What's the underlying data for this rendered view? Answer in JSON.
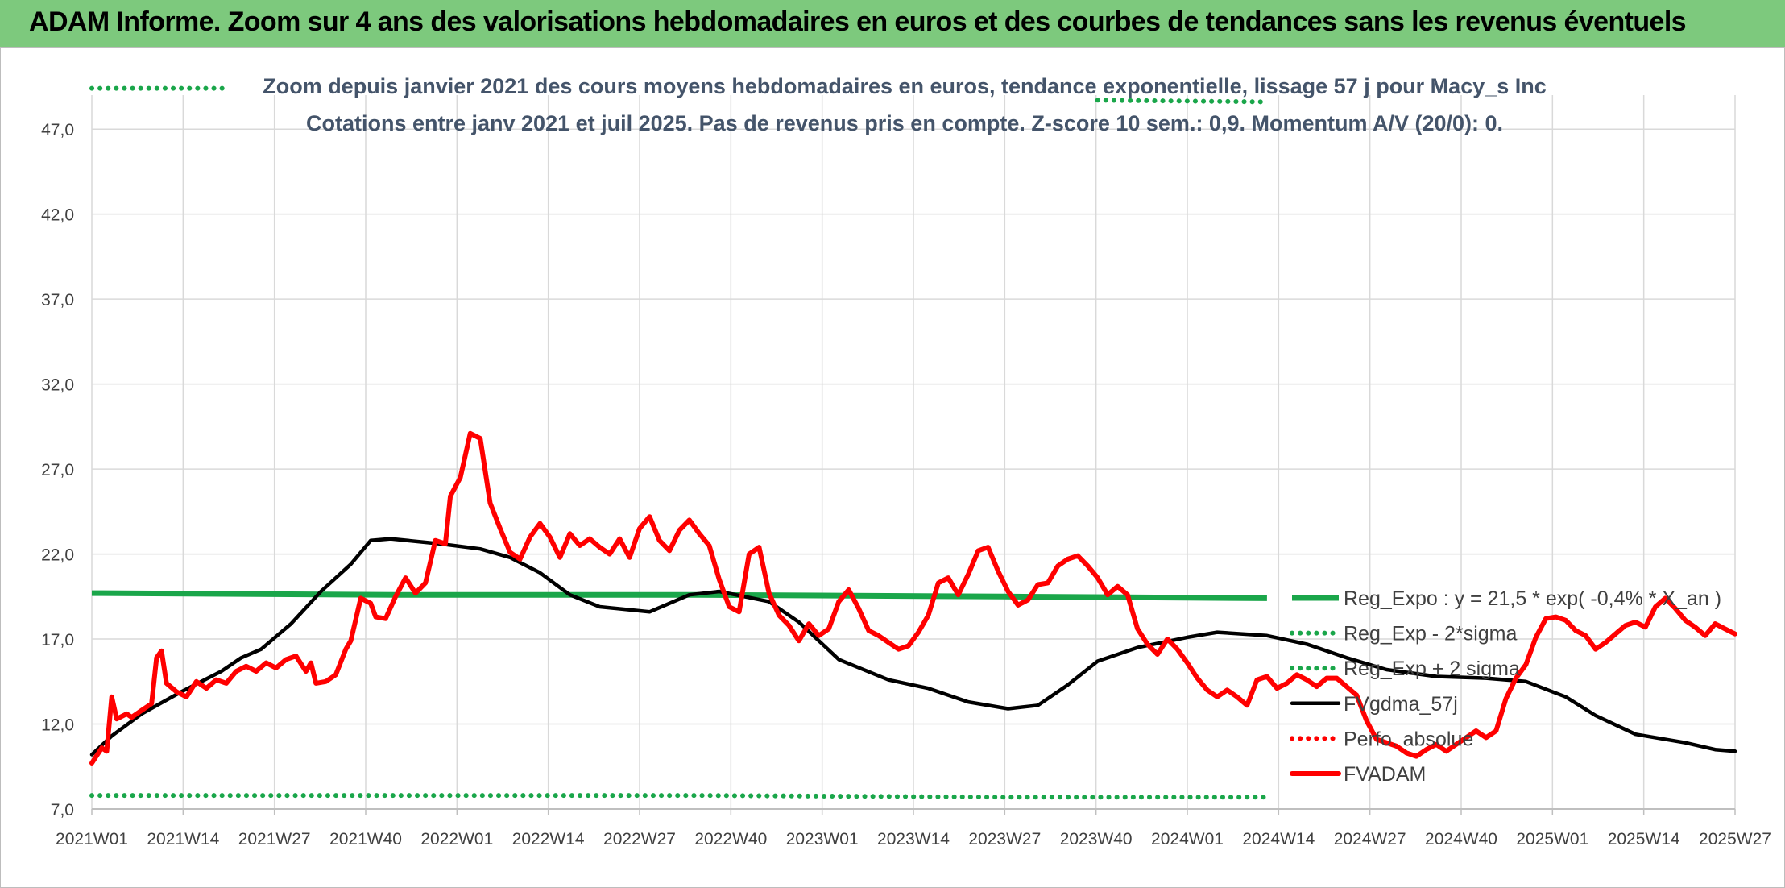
{
  "header": {
    "title": "ADAM Informe. Zoom sur 4 ans des valorisations hebdomadaires en euros et des courbes de tendances sans les revenus éventuels"
  },
  "chart_data": {
    "type": "line",
    "title": "Zoom depuis janvier 2021 des cours moyens hebdomadaires en euros, tendance exponentielle, lissage 57 j pour Macy_s Inc",
    "subtitle": "Cotations entre janv 2021 et juil 2025. Pas de revenus pris en compte. Z-score 10 sem.: 0,9. Momentum A/V (20/0): 0.",
    "xlabel": "",
    "ylabel": "",
    "ylim": [
      7.0,
      49.0
    ],
    "yticks": [
      "7,0",
      "12,0",
      "17,0",
      "22,0",
      "27,0",
      "32,0",
      "37,0",
      "42,0",
      "47,0"
    ],
    "x_tick_labels": [
      "2021W01",
      "2021W14",
      "2021W27",
      "2021W40",
      "2022W01",
      "2022W14",
      "2022W27",
      "2022W40",
      "2023W01",
      "2023W14",
      "2023W27",
      "2023W40",
      "2024W01",
      "2024W14",
      "2024W27",
      "2024W40",
      "2025W01",
      "2025W14",
      "2025W27"
    ],
    "grid": true,
    "legend_position": "right",
    "series": [
      {
        "name": "Reg_Expo : y = 21,5 * exp( -0,4% * X_an )",
        "color": "#1aa64a",
        "style": "solid",
        "points": [
          [
            0,
            19.7
          ],
          [
            61,
            19.6
          ],
          [
            122,
            19.6
          ],
          [
            183,
            19.5
          ],
          [
            236,
            19.4
          ]
        ]
      },
      {
        "name": "Reg_Exp - 2*sigma",
        "color": "#1aa64a",
        "style": "dotted",
        "points": [
          [
            0,
            7.8
          ],
          [
            61,
            7.8
          ],
          [
            122,
            7.8
          ],
          [
            183,
            7.7
          ],
          [
            236,
            7.7
          ]
        ]
      },
      {
        "name": "Reg_Exp + 2 sigma",
        "color": "#1aa64a",
        "style": "dotted",
        "points": [
          [
            0,
            49.4
          ],
          [
            27,
            49.4
          ]
        ],
        "points2": [
          [
            202,
            48.7
          ],
          [
            236,
            48.6
          ]
        ]
      },
      {
        "name": "FVgdma_57j",
        "color": "#000000",
        "style": "solid",
        "points": [
          [
            0,
            10.2
          ],
          [
            4,
            11.3
          ],
          [
            10,
            12.6
          ],
          [
            18,
            13.9
          ],
          [
            26,
            15.1
          ],
          [
            30,
            15.9
          ],
          [
            34,
            16.4
          ],
          [
            40,
            17.9
          ],
          [
            46,
            19.8
          ],
          [
            52,
            21.4
          ],
          [
            56,
            22.8
          ],
          [
            60,
            22.9
          ],
          [
            70,
            22.6
          ],
          [
            78,
            22.3
          ],
          [
            84,
            21.8
          ],
          [
            90,
            20.9
          ],
          [
            96,
            19.6
          ],
          [
            102,
            18.9
          ],
          [
            112,
            18.6
          ],
          [
            120,
            19.6
          ],
          [
            126,
            19.8
          ],
          [
            136,
            19.2
          ],
          [
            142,
            18.0
          ],
          [
            150,
            15.8
          ],
          [
            160,
            14.6
          ],
          [
            168,
            14.1
          ],
          [
            176,
            13.3
          ],
          [
            184,
            12.9
          ],
          [
            190,
            13.1
          ],
          [
            196,
            14.3
          ],
          [
            202,
            15.7
          ],
          [
            210,
            16.5
          ],
          [
            220,
            17.1
          ],
          [
            226,
            17.4
          ],
          [
            236,
            17.2
          ],
          [
            244,
            16.7
          ],
          [
            252,
            15.9
          ],
          [
            260,
            15.2
          ],
          [
            270,
            14.8
          ],
          [
            280,
            14.7
          ],
          [
            288,
            14.5
          ],
          [
            296,
            13.6
          ],
          [
            302,
            12.5
          ],
          [
            310,
            11.4
          ],
          [
            320,
            10.9
          ],
          [
            326,
            10.5
          ],
          [
            330,
            10.4
          ]
        ]
      },
      {
        "name": "Perfo. absolue",
        "color": "#ff0000",
        "style": "dotted",
        "points": []
      },
      {
        "name": "FVADAM",
        "color": "#ff0000",
        "style": "solid",
        "points": [
          [
            0,
            9.7
          ],
          [
            2,
            10.6
          ],
          [
            3,
            10.4
          ],
          [
            4,
            13.6
          ],
          [
            5,
            12.3
          ],
          [
            7,
            12.6
          ],
          [
            8,
            12.4
          ],
          [
            10,
            12.8
          ],
          [
            12,
            13.2
          ],
          [
            13,
            15.9
          ],
          [
            14,
            16.3
          ],
          [
            15,
            14.4
          ],
          [
            17,
            13.9
          ],
          [
            19,
            13.6
          ],
          [
            21,
            14.5
          ],
          [
            23,
            14.1
          ],
          [
            25,
            14.6
          ],
          [
            27,
            14.4
          ],
          [
            29,
            15.1
          ],
          [
            31,
            15.4
          ],
          [
            33,
            15.1
          ],
          [
            35,
            15.6
          ],
          [
            37,
            15.3
          ],
          [
            39,
            15.8
          ],
          [
            41,
            16.0
          ],
          [
            43,
            15.1
          ],
          [
            44,
            15.6
          ],
          [
            45,
            14.4
          ],
          [
            47,
            14.5
          ],
          [
            49,
            14.9
          ],
          [
            51,
            16.4
          ],
          [
            52,
            16.9
          ],
          [
            54,
            19.4
          ],
          [
            56,
            19.1
          ],
          [
            57,
            18.3
          ],
          [
            59,
            18.2
          ],
          [
            61,
            19.5
          ],
          [
            63,
            20.6
          ],
          [
            65,
            19.7
          ],
          [
            67,
            20.3
          ],
          [
            69,
            22.8
          ],
          [
            71,
            22.6
          ],
          [
            72,
            25.4
          ],
          [
            74,
            26.5
          ],
          [
            76,
            29.1
          ],
          [
            78,
            28.8
          ],
          [
            80,
            25.0
          ],
          [
            82,
            23.5
          ],
          [
            84,
            22.1
          ],
          [
            86,
            21.7
          ],
          [
            88,
            23.0
          ],
          [
            90,
            23.8
          ],
          [
            92,
            23.0
          ],
          [
            94,
            21.8
          ],
          [
            96,
            23.2
          ],
          [
            98,
            22.5
          ],
          [
            100,
            22.9
          ],
          [
            102,
            22.4
          ],
          [
            104,
            22.0
          ],
          [
            106,
            22.9
          ],
          [
            108,
            21.8
          ],
          [
            110,
            23.5
          ],
          [
            112,
            24.2
          ],
          [
            114,
            22.8
          ],
          [
            116,
            22.2
          ],
          [
            118,
            23.4
          ],
          [
            120,
            24.0
          ],
          [
            122,
            23.2
          ],
          [
            124,
            22.5
          ],
          [
            126,
            20.5
          ],
          [
            128,
            18.9
          ],
          [
            130,
            18.6
          ],
          [
            132,
            22.0
          ],
          [
            134,
            22.4
          ],
          [
            136,
            19.7
          ],
          [
            138,
            18.4
          ],
          [
            140,
            17.8
          ],
          [
            142,
            16.9
          ],
          [
            144,
            17.9
          ],
          [
            146,
            17.2
          ],
          [
            148,
            17.6
          ],
          [
            150,
            19.2
          ],
          [
            152,
            19.9
          ],
          [
            154,
            18.8
          ],
          [
            156,
            17.5
          ],
          [
            158,
            17.2
          ],
          [
            160,
            16.8
          ],
          [
            162,
            16.4
          ],
          [
            164,
            16.6
          ],
          [
            166,
            17.4
          ],
          [
            168,
            18.4
          ],
          [
            170,
            20.3
          ],
          [
            172,
            20.6
          ],
          [
            174,
            19.6
          ],
          [
            176,
            20.8
          ],
          [
            178,
            22.2
          ],
          [
            180,
            22.4
          ],
          [
            182,
            21.0
          ],
          [
            184,
            19.8
          ],
          [
            186,
            19.0
          ],
          [
            188,
            19.3
          ],
          [
            190,
            20.2
          ],
          [
            192,
            20.3
          ],
          [
            194,
            21.3
          ],
          [
            196,
            21.7
          ],
          [
            198,
            21.9
          ],
          [
            200,
            21.3
          ],
          [
            202,
            20.6
          ],
          [
            204,
            19.6
          ],
          [
            206,
            20.1
          ],
          [
            208,
            19.6
          ],
          [
            210,
            17.6
          ],
          [
            212,
            16.7
          ],
          [
            214,
            16.1
          ],
          [
            216,
            17.0
          ],
          [
            218,
            16.4
          ],
          [
            220,
            15.6
          ],
          [
            222,
            14.7
          ],
          [
            224,
            14.0
          ],
          [
            226,
            13.6
          ],
          [
            228,
            14.0
          ],
          [
            230,
            13.6
          ],
          [
            232,
            13.1
          ],
          [
            234,
            14.6
          ],
          [
            236,
            14.8
          ],
          [
            238,
            14.1
          ],
          [
            240,
            14.4
          ],
          [
            242,
            14.9
          ],
          [
            244,
            14.6
          ],
          [
            246,
            14.2
          ],
          [
            248,
            14.7
          ],
          [
            250,
            14.7
          ],
          [
            252,
            14.2
          ],
          [
            254,
            13.7
          ],
          [
            256,
            12.2
          ],
          [
            258,
            11.1
          ],
          [
            260,
            10.9
          ],
          [
            262,
            10.7
          ],
          [
            264,
            10.3
          ],
          [
            266,
            10.1
          ],
          [
            268,
            10.5
          ],
          [
            270,
            10.8
          ],
          [
            272,
            10.4
          ],
          [
            274,
            10.8
          ],
          [
            276,
            11.2
          ],
          [
            278,
            11.6
          ],
          [
            280,
            11.2
          ],
          [
            282,
            11.6
          ],
          [
            284,
            13.5
          ],
          [
            286,
            14.7
          ],
          [
            288,
            15.5
          ],
          [
            290,
            17.1
          ],
          [
            292,
            18.2
          ],
          [
            294,
            18.3
          ],
          [
            296,
            18.1
          ],
          [
            298,
            17.5
          ],
          [
            300,
            17.2
          ],
          [
            302,
            16.4
          ],
          [
            304,
            16.8
          ],
          [
            306,
            17.3
          ],
          [
            308,
            17.8
          ],
          [
            310,
            18.0
          ],
          [
            312,
            17.7
          ],
          [
            314,
            18.9
          ],
          [
            316,
            19.4
          ],
          [
            318,
            18.8
          ],
          [
            320,
            18.1
          ],
          [
            322,
            17.7
          ],
          [
            324,
            17.2
          ],
          [
            326,
            17.9
          ],
          [
            328,
            17.6
          ],
          [
            330,
            17.3
          ]
        ]
      }
    ]
  }
}
